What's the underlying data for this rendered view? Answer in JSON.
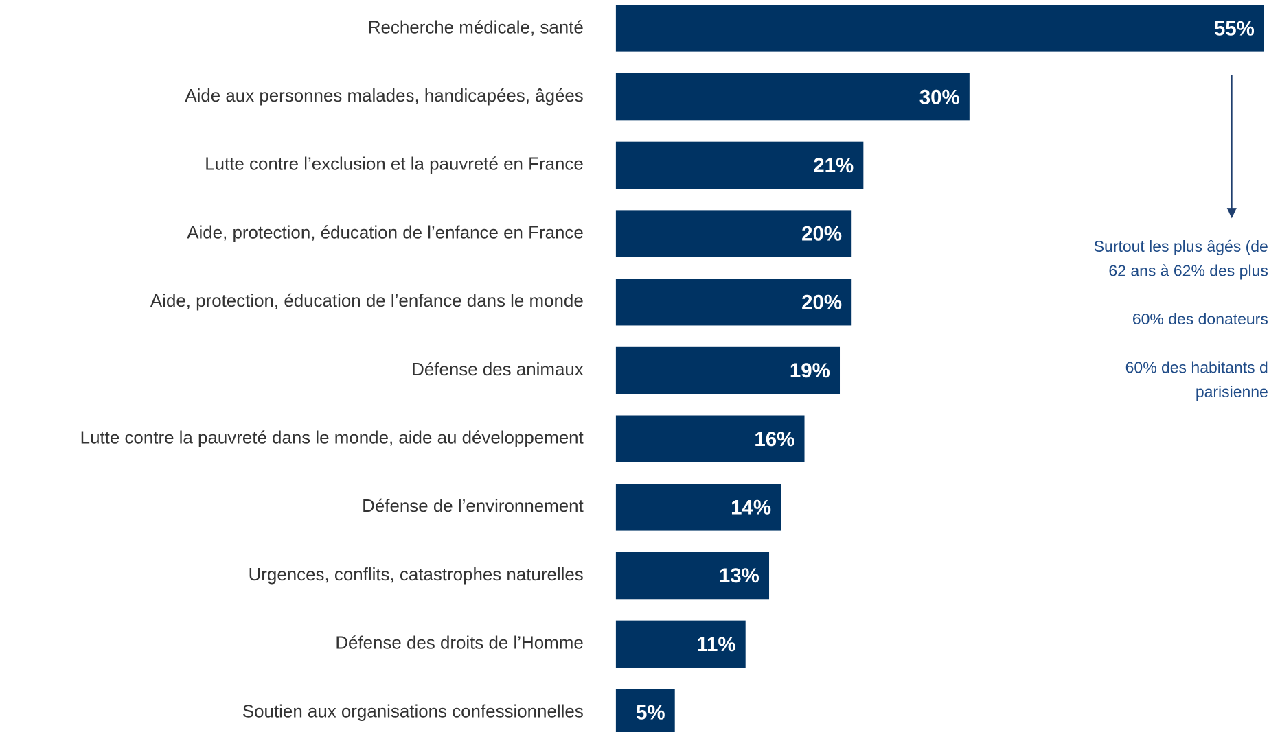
{
  "chart_data": {
    "type": "bar",
    "orientation": "horizontal",
    "categories": [
      "Recherche médicale, santé",
      "Aide aux personnes malades, handicapées, âgées",
      "Lutte contre l’exclusion et la pauvreté en France",
      "Aide, protection, éducation de l’enfance en France",
      "Aide, protection, éducation de l’enfance dans le monde",
      "Défense des animaux",
      "Lutte contre la pauvreté dans le monde, aide au développement",
      "Défense de l’environnement",
      "Urgences, conflits, catastrophes naturelles",
      "Défense des droits de l’Homme",
      "Soutien aux organisations confessionnelles"
    ],
    "values": [
      55,
      30,
      21,
      20,
      20,
      19,
      16,
      14,
      13,
      11,
      5
    ],
    "value_labels": [
      "55%",
      "30%",
      "21%",
      "20%",
      "20%",
      "19%",
      "16%",
      "14%",
      "13%",
      "11%",
      "5%"
    ],
    "color": "#003363",
    "annotations": [
      "Surtout les plus âgés (de",
      "62 ans à 62% des plus",
      "60% des donateurs",
      "60% des habitants d",
      "parisienne"
    ]
  }
}
